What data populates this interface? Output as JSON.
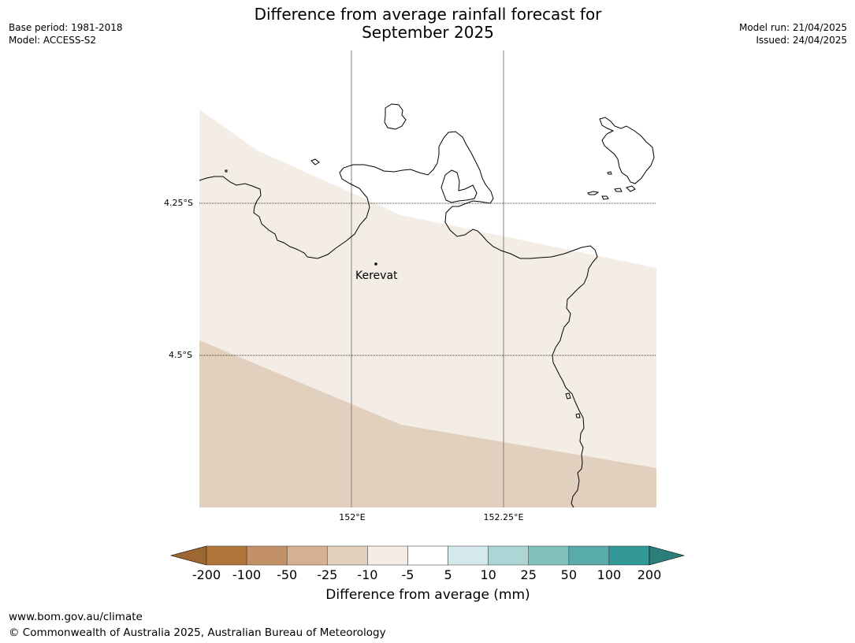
{
  "title_line1": "Difference from average rainfall forecast for",
  "title_line2": "September 2025",
  "meta": {
    "base_period": "Base period: 1981-2018",
    "model": "Model: ACCESS-S2",
    "model_run": "Model run: 21/04/2025",
    "issued": "Issued: 24/04/2025"
  },
  "map": {
    "lat_labels": [
      "4.25°S",
      "4.5°S"
    ],
    "lon_labels": [
      "152°E",
      "152.25°E"
    ],
    "place": "Kerevat",
    "colors": {
      "minus5_to_minus10": "#f4ede6",
      "minus10_to_minus25": "#e2d0bf",
      "coastline": "#000000"
    }
  },
  "colorbar": {
    "title": "Difference from average (mm)",
    "ticks": [
      "-200",
      "-100",
      "-50",
      "-25",
      "-10",
      "-5",
      "5",
      "10",
      "25",
      "50",
      "100",
      "200"
    ],
    "colors": [
      "#9c6730",
      "#b0753b",
      "#c29168",
      "#d4b291",
      "#e3d0bf",
      "#f4ede6",
      "#ffffff",
      "#d6e9ea",
      "#acd6d6",
      "#82c2be",
      "#58aaab",
      "#339996",
      "#2a7f7b"
    ]
  },
  "footer": {
    "url": "www.bom.gov.au/climate",
    "copyright": "© Commonwealth of Australia 2025, Australian Bureau of Meteorology"
  }
}
